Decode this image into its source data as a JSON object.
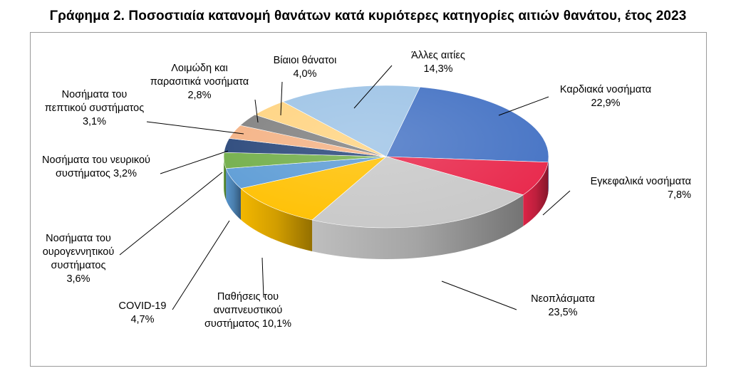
{
  "title": "Γράφημα 2. Ποσοστιαία κατανομή θανάτων κατά κυριότερες κατηγορίες αιτιών θανάτου, έτος 2023",
  "chart_data": {
    "type": "pie",
    "title": "Γράφημα 2. Ποσοστιαία κατανομή θανάτων κατά κυριότερες κατηγορίες αιτιών θανάτου, έτος 2023",
    "legend": "none",
    "unit": "%",
    "slices": [
      {
        "label": "Καρδιακά νοσήματα",
        "value": 22.9,
        "value_text": "22,9%",
        "color": "#4472C4"
      },
      {
        "label": "Εγκεφαλικά νοσήματα",
        "value": 7.8,
        "value_text": "7,8%",
        "color": "#E8264A"
      },
      {
        "label": "Νεοπλάσματα",
        "value": 23.5,
        "value_text": "23,5%",
        "color": "#C8C8C8"
      },
      {
        "label": "Παθήσεις του αναπνευστικού συστήματος",
        "value": 10.1,
        "value_text": "10,1%",
        "color": "#FFC000"
      },
      {
        "label": "COVID-19",
        "value": 4.7,
        "value_text": "4,7%",
        "color": "#5B9BD5"
      },
      {
        "label": "Νοσήματα του ουρογεννητικού συστήματος",
        "value": 3.6,
        "value_text": "3,6%",
        "color": "#70AD47"
      },
      {
        "label": "Νοσήματα του νευρικού συστήματος",
        "value": 3.2,
        "value_text": "3,2%",
        "color": "#264478"
      },
      {
        "label": "Νοσήματα του πεπτικού συστήματος",
        "value": 3.1,
        "value_text": "3,1%",
        "color": "#F4B183"
      },
      {
        "label": "Λοιμώδη και παρασιτικά νοσήματα",
        "value": 2.8,
        "value_text": "2,8%",
        "color": "#7F7F7F"
      },
      {
        "label": "Βίαιοι θάνατοι",
        "value": 4.0,
        "value_text": "4,0%",
        "color": "#FFD37F"
      },
      {
        "label": "Άλλες αιτίες",
        "value": 14.3,
        "value_text": "14,3%",
        "color": "#9DC3E6"
      }
    ]
  },
  "labels": {
    "kardiaka": {
      "l1": "Καρδιακά νοσήματα",
      "l2": "22,9%"
    },
    "enkefalika": {
      "l1": "Εγκεφαλικά νοσήματα",
      "l2": "7,8%"
    },
    "neoplasmata": {
      "l1": "Νεοπλάσματα",
      "l2": "23,5%"
    },
    "anapneustiko": {
      "l1": "Παθήσεις του",
      "l2": "αναπνευστικού",
      "l3": "συστήματος 10,1%"
    },
    "covid": {
      "l1": "COVID-19",
      "l2": "4,7%"
    },
    "ourogennitiko": {
      "l1": "Νοσήματα του",
      "l2": "ουρογεννητικού",
      "l3": "συστήματος",
      "l4": "3,6%"
    },
    "neuriko": {
      "l1": "Νοσήματα του νευρικού",
      "l2": "συστήματος 3,2%"
    },
    "peptiko": {
      "l1": "Νοσήματα του",
      "l2": "πεπτικού συστήματος",
      "l3": "3,1%"
    },
    "loimodi": {
      "l1": "Λοιμώδη και",
      "l2": "παρασιτικά νοσήματα",
      "l3": "2,8%"
    },
    "biaioi": {
      "l1": "Βίαιοι θάνατοι",
      "l2": "4,0%"
    },
    "alles": {
      "l1": "Άλλες αιτίες",
      "l2": "14,3%"
    }
  }
}
